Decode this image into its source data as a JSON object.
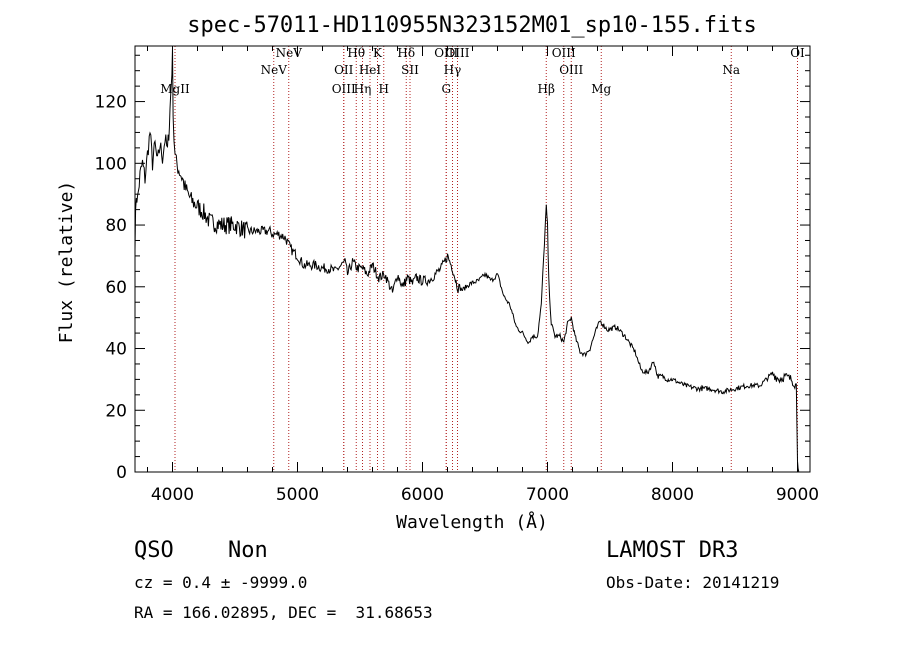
{
  "chart_data": {
    "type": "line",
    "title": "spec-57011-HD110955N323152M01_sp10-155.fits",
    "xlabel": "Wavelength (Å)",
    "ylabel": "Flux (relative)",
    "xlim": [
      3700,
      9100
    ],
    "ylim": [
      0,
      138
    ],
    "xticks": [
      4000,
      5000,
      6000,
      7000,
      8000,
      9000
    ],
    "yticks": [
      0,
      20,
      40,
      60,
      80,
      100,
      120
    ],
    "series": [
      {
        "name": "spectrum",
        "x": [
          3700,
          3710,
          3720,
          3740,
          3760,
          3780,
          3800,
          3820,
          3840,
          3860,
          3880,
          3900,
          3920,
          3940,
          3960,
          3975,
          3990,
          4000,
          4005,
          4012,
          4020,
          4030,
          4050,
          4080,
          4100,
          4150,
          4200,
          4250,
          4300,
          4400,
          4500,
          4600,
          4700,
          4780,
          4800,
          4850,
          4900,
          4950,
          5000,
          5050,
          5100,
          5150,
          5200,
          5250,
          5300,
          5350,
          5380,
          5400,
          5440,
          5480,
          5520,
          5560,
          5600,
          5650,
          5700,
          5760,
          5800,
          5840,
          5880,
          5920,
          5950,
          5990,
          6050,
          6100,
          6150,
          6200,
          6240,
          6280,
          6320,
          6380,
          6450,
          6500,
          6550,
          6600,
          6650,
          6700,
          6750,
          6800,
          6850,
          6880,
          6920,
          6950,
          6975,
          6990,
          7000,
          7010,
          7030,
          7060,
          7100,
          7130,
          7160,
          7190,
          7220,
          7260,
          7300,
          7340,
          7380,
          7420,
          7480,
          7550,
          7620,
          7700,
          7750,
          7800,
          7850,
          7880,
          7920,
          7960,
          8000,
          8100,
          8200,
          8300,
          8400,
          8500,
          8600,
          8700,
          8800,
          8850,
          8900,
          8950,
          8990,
          9000,
          9010
        ],
        "y": [
          75,
          90,
          88,
          96,
          100,
          95,
          103,
          110,
          100,
          106,
          100,
          106,
          102,
          108,
          104,
          113,
          126,
          135,
          118,
          108,
          104,
          100,
          98,
          95,
          92,
          88,
          86,
          84,
          81,
          80,
          80,
          78,
          78,
          78,
          77,
          77,
          76,
          72,
          70,
          67,
          67,
          67,
          66,
          66,
          65,
          67,
          68,
          64,
          68,
          66,
          66,
          64,
          67,
          63,
          64,
          58,
          64,
          60,
          63,
          61,
          63,
          62,
          62,
          64,
          66,
          70,
          66,
          60,
          59,
          61,
          62,
          64,
          62,
          64,
          57,
          54,
          47,
          45,
          42,
          44,
          44,
          54,
          74,
          86,
          80,
          62,
          48,
          44,
          44,
          42,
          48,
          50,
          44,
          39,
          38,
          40,
          45,
          49,
          46,
          47,
          44,
          39,
          33,
          32,
          36,
          31,
          31,
          30,
          30,
          28,
          27,
          27,
          26,
          27,
          28,
          28,
          32,
          30,
          31,
          30,
          28,
          5,
          0
        ]
      }
    ],
    "lines": [
      {
        "label": "MgII",
        "x": 4020,
        "row": 3
      },
      {
        "label": "NeV",
        "x": 4810,
        "row": 2
      },
      {
        "label": "NeV",
        "x": 4930,
        "row": 1
      },
      {
        "label": "OII",
        "x": 5370,
        "row": 2
      },
      {
        "label": "OIII",
        "x": 5370,
        "row": 3
      },
      {
        "label": "Hθ",
        "x": 5470,
        "row": 1
      },
      {
        "label": "Hη",
        "x": 5520,
        "row": 3
      },
      {
        "label": "HeI",
        "x": 5580,
        "row": 2
      },
      {
        "label": "K",
        "x": 5640,
        "row": 1
      },
      {
        "label": "H",
        "x": 5690,
        "row": 3
      },
      {
        "label": "Hδ",
        "x": 5870,
        "row": 1
      },
      {
        "label": "SII",
        "x": 5900,
        "row": 2
      },
      {
        "label": "OIII",
        "x": 6190,
        "row": 1
      },
      {
        "label": "Hγ",
        "x": 6240,
        "row": 2
      },
      {
        "label": "G",
        "x": 6190,
        "row": 3
      },
      {
        "label": "OIII",
        "x": 6280,
        "row": 0
      },
      {
        "label": "Hβ",
        "x": 6990,
        "row": 3
      },
      {
        "label": "OIII",
        "x": 7130,
        "row": 1
      },
      {
        "label": "OIII",
        "x": 7190,
        "row": 2
      },
      {
        "label": "Mg",
        "x": 7430,
        "row": 3
      },
      {
        "label": "Na",
        "x": 8470,
        "row": 2
      },
      {
        "label": "OI",
        "x": 9000,
        "row": 1
      }
    ]
  },
  "info": {
    "class": "QSO",
    "subclass": "Non",
    "survey": "LAMOST DR3",
    "cz": "cz = 0.4 ± -9999.0",
    "obs_date": "Obs-Date: 20141219",
    "coords": "RA = 166.02895, DEC =  31.68653"
  },
  "colors": {
    "spectrum": "#000000",
    "line_marker": "#b22222",
    "axes": "#000000"
  }
}
